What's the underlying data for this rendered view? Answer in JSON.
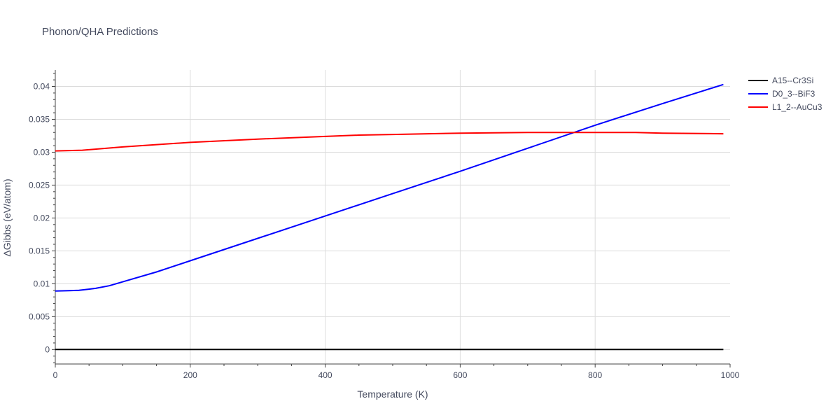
{
  "chart_data": {
    "type": "line",
    "title": "Phonon/QHA Predictions",
    "xlabel": "Temperature (K)",
    "ylabel": "ΔGibbs (eV/atom)",
    "xlim": [
      0,
      1000
    ],
    "ylim": [
      -0.0022,
      0.0425
    ],
    "x_ticks": [
      0,
      200,
      400,
      600,
      800,
      1000
    ],
    "x_tick_labels": [
      "0",
      "200",
      "400",
      "600",
      "800",
      "1000"
    ],
    "y_ticks": [
      0,
      0.005,
      0.01,
      0.015,
      0.02,
      0.025,
      0.03,
      0.035,
      0.04
    ],
    "y_tick_labels": [
      "0",
      "0.005",
      "0.01",
      "0.015",
      "0.02",
      "0.025",
      "0.03",
      "0.035",
      "0.04"
    ],
    "grid": true,
    "legend_position": "top-right",
    "series": [
      {
        "name": "A15--Cr3Si",
        "color": "#000000",
        "x": [
          0,
          100,
          200,
          300,
          400,
          500,
          600,
          700,
          800,
          900,
          990
        ],
        "y": [
          0,
          0,
          0,
          0,
          0,
          0,
          0,
          0,
          0,
          0,
          0
        ]
      },
      {
        "name": "D0_3--BiF3",
        "color": "#0000ff",
        "x": [
          0,
          20,
          35,
          60,
          80,
          100,
          150,
          200,
          300,
          400,
          500,
          600,
          700,
          800,
          900,
          990
        ],
        "y": [
          0.0089,
          0.00895,
          0.009,
          0.0093,
          0.0097,
          0.0103,
          0.0118,
          0.0135,
          0.0169,
          0.0203,
          0.0237,
          0.0271,
          0.0306,
          0.0341,
          0.0374,
          0.0403
        ]
      },
      {
        "name": "L1_2--AuCu3",
        "color": "#ff0000",
        "x": [
          0,
          40,
          100,
          200,
          300,
          400,
          450,
          500,
          600,
          700,
          730,
          800,
          860,
          900,
          990
        ],
        "y": [
          0.0302,
          0.0303,
          0.0308,
          0.0315,
          0.032,
          0.0324,
          0.0326,
          0.0327,
          0.0329,
          0.033,
          0.033,
          0.033,
          0.033,
          0.0329,
          0.0328
        ]
      }
    ]
  }
}
